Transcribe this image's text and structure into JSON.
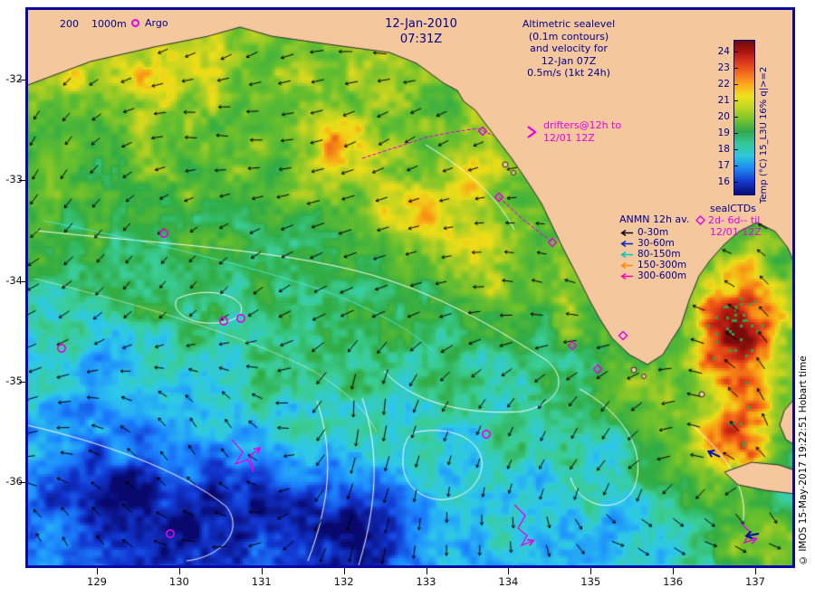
{
  "figure": {
    "date": "12-Jan-2010",
    "time": "07:31Z"
  },
  "map_legends": {
    "bathymetry": {
      "depth1": "200",
      "depth2": "1000m"
    },
    "argo": {
      "label": "Argo"
    },
    "altimetry_lines": [
      "Altimetric sealevel",
      "(0.1m contours)",
      "and velocity for",
      "12-Jan 07Z",
      "0.5m/s (1kt 24h)"
    ],
    "drifters": {
      "line1": "drifters@12h to",
      "line2": "12/01 12Z"
    },
    "anmn": {
      "title": "ANMN 12h av.",
      "items": [
        {
          "label": "0-30m",
          "color": "#000000"
        },
        {
          "label": "30-60m",
          "color": "#0028C8"
        },
        {
          "label": "80-150m",
          "color": "#00C8C8"
        },
        {
          "label": "150-300m",
          "color": "#FF8C00"
        },
        {
          "label": "300-600m",
          "color": "#FF00B4"
        }
      ]
    },
    "sealctds": {
      "title": "sealCTDs",
      "line1": "2d- 6d-- til",
      "line2": "12/01 12Z"
    }
  },
  "colorbar": {
    "ticks": [
      "24",
      "23",
      "22",
      "21",
      "20",
      "19",
      "18",
      "17",
      "16"
    ],
    "label": "Temp (°C) 15_L3U 16% q|>=2"
  },
  "watermark": "© IMOS 15-May-2017 19:22:51 Hobart time",
  "axes": {
    "x_ticks": [
      "129",
      "130",
      "131",
      "132",
      "133",
      "134",
      "135",
      "136",
      "137"
    ],
    "y_ticks": [
      "-32",
      "-33",
      "-34",
      "-35",
      "-36"
    ]
  },
  "map_style": {
    "land_color": "#F4C79C",
    "frame_color": "#0A0AA0",
    "marker_color": "#E800E8"
  },
  "map_markers": {
    "argo_floats": [
      [
        153,
        250
      ],
      [
        40,
        377
      ],
      [
        219,
        347
      ],
      [
        238,
        344
      ],
      [
        160,
        582
      ],
      [
        509,
        472
      ]
    ],
    "seal_ctds": [
      [
        505,
        137
      ],
      [
        523,
        210
      ],
      [
        582,
        260
      ],
      [
        604,
        374
      ],
      [
        632,
        400
      ],
      [
        660,
        363
      ]
    ],
    "seal_tracks": [
      [
        [
          372,
          167
        ],
        [
          412,
          154
        ],
        [
          442,
          144
        ],
        [
          472,
          138
        ],
        [
          500,
          134
        ],
        [
          517,
          142
        ]
      ],
      [
        [
          523,
          210
        ],
        [
          550,
          235
        ],
        [
          582,
          260
        ]
      ]
    ],
    "drifter_tracks": [
      [
        [
          228,
          478
        ],
        [
          240,
          492
        ],
        [
          232,
          505
        ],
        [
          246,
          500
        ],
        [
          252,
          514
        ],
        [
          248,
          496
        ],
        [
          258,
          488
        ]
      ],
      [
        [
          540,
          550
        ],
        [
          552,
          562
        ],
        [
          544,
          576
        ],
        [
          554,
          584
        ],
        [
          548,
          595
        ],
        [
          560,
          590
        ]
      ],
      [
        [
          790,
          570
        ],
        [
          800,
          580
        ],
        [
          794,
          592
        ],
        [
          806,
          588
        ]
      ]
    ],
    "mooring_arrows": [
      {
        "x": 767,
        "y": 497,
        "angle": 205,
        "color": "#0014B4"
      },
      {
        "x": 810,
        "y": 582,
        "angle": 170,
        "color": "#000A96"
      }
    ]
  }
}
